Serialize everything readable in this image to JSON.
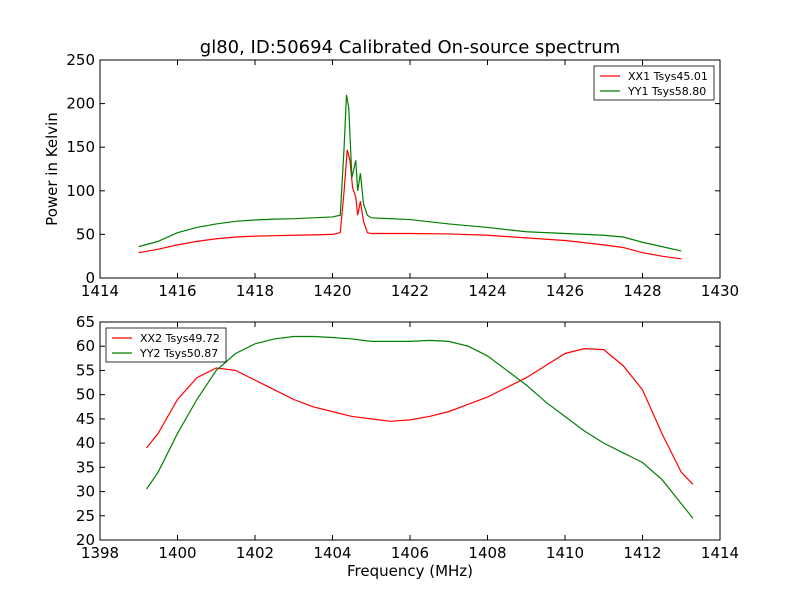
{
  "title": "gl80, ID:50694 Calibrated On-source spectrum",
  "chart_data": [
    {
      "type": "line",
      "ylabel": "Power in Kelvin",
      "xlabel": "",
      "xlim": [
        1414,
        1430
      ],
      "ylim": [
        0,
        250
      ],
      "xticks": [
        "1414",
        "1416",
        "1418",
        "1420",
        "1422",
        "1424",
        "1426",
        "1428",
        "1430"
      ],
      "yticks": [
        "0",
        "50",
        "100",
        "150",
        "200",
        "250"
      ],
      "grid": false,
      "legend_position": "top-right",
      "series": [
        {
          "name": "XX1 Tsys45.01",
          "color": "#ff0000",
          "points": [
            [
              1415.0,
              29
            ],
            [
              1415.5,
              33
            ],
            [
              1416.0,
              38
            ],
            [
              1416.5,
              42
            ],
            [
              1417.0,
              45
            ],
            [
              1417.5,
              47
            ],
            [
              1418.0,
              48
            ],
            [
              1418.5,
              48.5
            ],
            [
              1419.0,
              49
            ],
            [
              1419.5,
              49.5
            ],
            [
              1420.0,
              50
            ],
            [
              1420.2,
              52
            ],
            [
              1420.3,
              100
            ],
            [
              1420.38,
              147
            ],
            [
              1420.45,
              135
            ],
            [
              1420.52,
              103
            ],
            [
              1420.6,
              93
            ],
            [
              1420.65,
              72
            ],
            [
              1420.72,
              88
            ],
            [
              1420.8,
              65
            ],
            [
              1420.9,
              52
            ],
            [
              1421.0,
              51
            ],
            [
              1422.0,
              51
            ],
            [
              1423.0,
              50.5
            ],
            [
              1424.0,
              49
            ],
            [
              1425.0,
              46
            ],
            [
              1426.0,
              43
            ],
            [
              1427.0,
              38
            ],
            [
              1427.5,
              35
            ],
            [
              1428.0,
              29
            ],
            [
              1428.5,
              25
            ],
            [
              1429.0,
              22
            ]
          ]
        },
        {
          "name": "YY1 Tsys58.80",
          "color": "#008000",
          "points": [
            [
              1415.0,
              36
            ],
            [
              1415.5,
              42
            ],
            [
              1416.0,
              52
            ],
            [
              1416.5,
              58
            ],
            [
              1417.0,
              62
            ],
            [
              1417.5,
              65
            ],
            [
              1418.0,
              66.5
            ],
            [
              1418.5,
              67.5
            ],
            [
              1419.0,
              68
            ],
            [
              1419.5,
              69
            ],
            [
              1420.0,
              70
            ],
            [
              1420.2,
              72
            ],
            [
              1420.3,
              150
            ],
            [
              1420.36,
              210
            ],
            [
              1420.42,
              195
            ],
            [
              1420.5,
              115
            ],
            [
              1420.6,
              135
            ],
            [
              1420.65,
              100
            ],
            [
              1420.72,
              120
            ],
            [
              1420.8,
              85
            ],
            [
              1420.9,
              72
            ],
            [
              1421.0,
              69
            ],
            [
              1422.0,
              67
            ],
            [
              1423.0,
              62
            ],
            [
              1424.0,
              58
            ],
            [
              1425.0,
              53
            ],
            [
              1426.0,
              51
            ],
            [
              1427.0,
              49
            ],
            [
              1427.5,
              47
            ],
            [
              1428.0,
              41
            ],
            [
              1428.5,
              36
            ],
            [
              1429.0,
              31
            ]
          ]
        }
      ]
    },
    {
      "type": "line",
      "ylabel": "",
      "xlabel": "Frequency (MHz)",
      "xlim": [
        1398,
        1414
      ],
      "ylim": [
        20,
        65
      ],
      "xticks": [
        "1398",
        "1400",
        "1402",
        "1404",
        "1406",
        "1408",
        "1410",
        "1412",
        "1414"
      ],
      "yticks": [
        "20",
        "25",
        "30",
        "35",
        "40",
        "45",
        "50",
        "55",
        "60",
        "65"
      ],
      "grid": false,
      "legend_position": "top-left",
      "series": [
        {
          "name": "XX2 Tsys49.72",
          "color": "#ff0000",
          "points": [
            [
              1399.2,
              39
            ],
            [
              1399.5,
              42
            ],
            [
              1400.0,
              49
            ],
            [
              1400.5,
              53.5
            ],
            [
              1401.0,
              55.5
            ],
            [
              1401.5,
              55
            ],
            [
              1402.0,
              53
            ],
            [
              1402.5,
              51
            ],
            [
              1403.0,
              49
            ],
            [
              1403.5,
              47.5
            ],
            [
              1404.0,
              46.5
            ],
            [
              1404.5,
              45.5
            ],
            [
              1405.0,
              45
            ],
            [
              1405.5,
              44.5
            ],
            [
              1406.0,
              44.8
            ],
            [
              1406.5,
              45.5
            ],
            [
              1407.0,
              46.5
            ],
            [
              1407.5,
              48
            ],
            [
              1408.0,
              49.5
            ],
            [
              1408.5,
              51.5
            ],
            [
              1409.0,
              53.5
            ],
            [
              1409.5,
              56
            ],
            [
              1410.0,
              58.5
            ],
            [
              1410.5,
              59.5
            ],
            [
              1411.0,
              59.3
            ],
            [
              1411.5,
              56
            ],
            [
              1412.0,
              51
            ],
            [
              1412.5,
              42
            ],
            [
              1413.0,
              34
            ],
            [
              1413.3,
              31.5
            ]
          ]
        },
        {
          "name": "YY2 Tsys50.87",
          "color": "#008000",
          "points": [
            [
              1399.2,
              30.5
            ],
            [
              1399.5,
              34
            ],
            [
              1400.0,
              42
            ],
            [
              1400.5,
              49
            ],
            [
              1401.0,
              55
            ],
            [
              1401.5,
              58.5
            ],
            [
              1402.0,
              60.5
            ],
            [
              1402.5,
              61.5
            ],
            [
              1403.0,
              62
            ],
            [
              1403.5,
              62
            ],
            [
              1404.0,
              61.8
            ],
            [
              1404.5,
              61.5
            ],
            [
              1405.0,
              61
            ],
            [
              1405.5,
              61
            ],
            [
              1406.0,
              61
            ],
            [
              1406.5,
              61.2
            ],
            [
              1407.0,
              61
            ],
            [
              1407.5,
              60
            ],
            [
              1408.0,
              58
            ],
            [
              1408.5,
              55
            ],
            [
              1409.0,
              52
            ],
            [
              1409.5,
              48.5
            ],
            [
              1410.0,
              45.5
            ],
            [
              1410.5,
              42.5
            ],
            [
              1411.0,
              40
            ],
            [
              1411.5,
              38
            ],
            [
              1412.0,
              36
            ],
            [
              1412.5,
              32.5
            ],
            [
              1413.0,
              27.5
            ],
            [
              1413.3,
              24.5
            ]
          ]
        }
      ]
    }
  ]
}
